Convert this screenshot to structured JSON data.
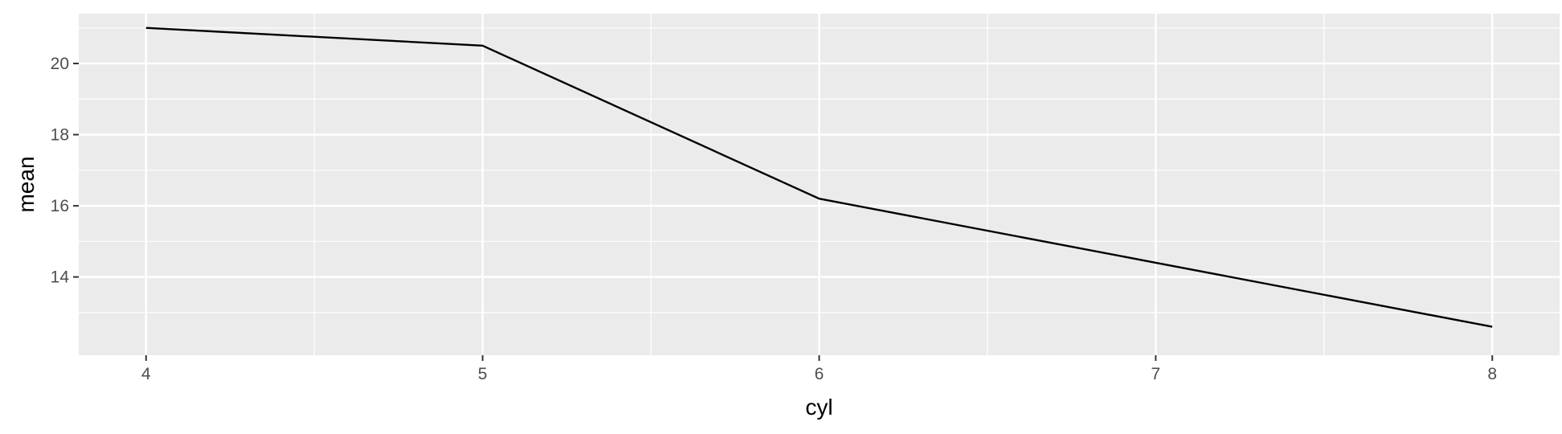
{
  "chart_data": {
    "type": "line",
    "xlabel": "cyl",
    "ylabel": "mean",
    "x": [
      4,
      5,
      6,
      7,
      8
    ],
    "series": [
      {
        "values": [
          21.0,
          20.5,
          16.2,
          14.4,
          12.6
        ]
      }
    ],
    "xlim": [
      3.8,
      8.2
    ],
    "ylim": [
      11.8,
      21.4
    ],
    "x_ticks": [
      4,
      5,
      6,
      7,
      8
    ],
    "x_tick_labels": [
      "4",
      "5",
      "6",
      "7",
      "8"
    ],
    "y_ticks": [
      14,
      16,
      18,
      20
    ],
    "y_tick_labels": [
      "14",
      "16",
      "18",
      "20"
    ],
    "grid": true,
    "legend": "none",
    "colors": {
      "panel_background": "#ebebeb",
      "grid": "#ffffff",
      "line": "#000000",
      "tick_label": "#4d4d4d"
    }
  }
}
